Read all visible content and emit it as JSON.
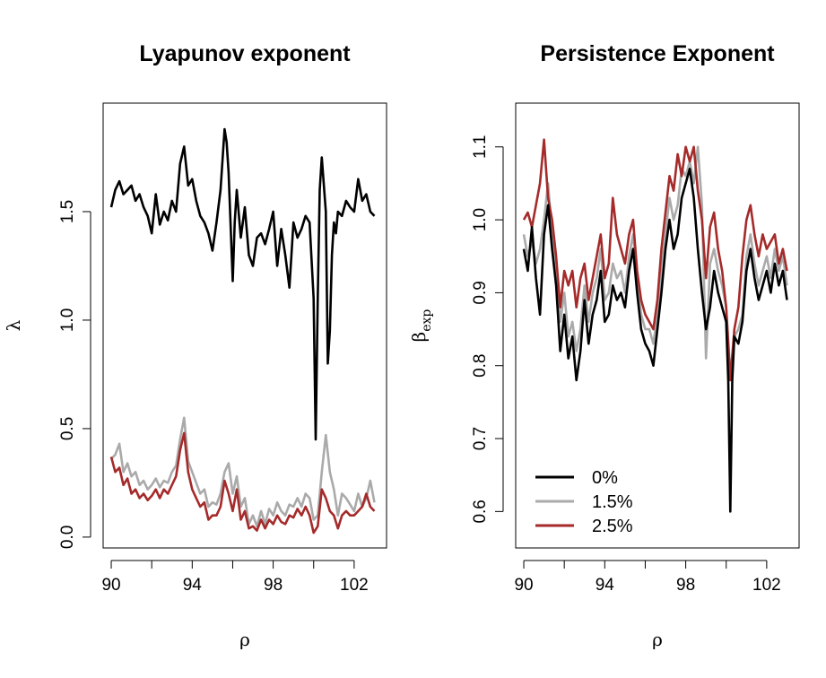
{
  "colors": {
    "s0": "#000000",
    "s15": "#aaaaaa",
    "s25": "#a52a2a"
  },
  "chart_data": [
    {
      "type": "line",
      "title": "Lyapunov exponent",
      "xlabel": "ρ",
      "ylabel": "λ",
      "xlim": [
        89.6,
        103.6
      ],
      "ylim": [
        -0.05,
        2.0
      ],
      "xticks": [
        90,
        92,
        94,
        96,
        98,
        100,
        102
      ],
      "xtick_labels": [
        "90",
        "",
        "94",
        "",
        "98",
        "",
        "102"
      ],
      "yticks": [
        0.0,
        0.5,
        1.0,
        1.5
      ],
      "ytick_labels": [
        "0.0",
        "0.5",
        "1.0",
        "1.5"
      ],
      "series": [
        {
          "name": "0%",
          "color": "#000000",
          "x": [
            90.0,
            90.2,
            90.4,
            90.6,
            90.8,
            91.0,
            91.2,
            91.4,
            91.6,
            91.8,
            92.0,
            92.2,
            92.4,
            92.6,
            92.8,
            93.0,
            93.2,
            93.4,
            93.6,
            93.8,
            94.0,
            94.2,
            94.4,
            94.6,
            94.8,
            95.0,
            95.2,
            95.4,
            95.6,
            95.7,
            95.8,
            96.0,
            96.1,
            96.2,
            96.4,
            96.6,
            96.8,
            97.0,
            97.2,
            97.4,
            97.6,
            97.8,
            98.0,
            98.2,
            98.4,
            98.6,
            98.8,
            99.0,
            99.2,
            99.4,
            99.6,
            99.8,
            100.0,
            100.1,
            100.2,
            100.3,
            100.4,
            100.6,
            100.7,
            100.8,
            100.9,
            101.0,
            101.1,
            101.2,
            101.4,
            101.6,
            101.8,
            102.0,
            102.2,
            102.4,
            102.6,
            102.8,
            103.0
          ],
          "y": [
            1.52,
            1.6,
            1.64,
            1.58,
            1.6,
            1.62,
            1.55,
            1.58,
            1.52,
            1.48,
            1.4,
            1.58,
            1.44,
            1.5,
            1.46,
            1.55,
            1.5,
            1.72,
            1.8,
            1.62,
            1.65,
            1.55,
            1.48,
            1.45,
            1.4,
            1.32,
            1.45,
            1.6,
            1.88,
            1.82,
            1.68,
            1.18,
            1.45,
            1.6,
            1.38,
            1.52,
            1.3,
            1.25,
            1.38,
            1.4,
            1.35,
            1.42,
            1.5,
            1.25,
            1.42,
            1.3,
            1.15,
            1.45,
            1.38,
            1.42,
            1.48,
            1.45,
            1.1,
            0.45,
            1.1,
            1.6,
            1.75,
            1.5,
            0.8,
            0.95,
            1.3,
            1.45,
            1.4,
            1.5,
            1.48,
            1.55,
            1.52,
            1.5,
            1.65,
            1.55,
            1.58,
            1.5,
            1.48
          ]
        },
        {
          "name": "1.5%",
          "color": "#aaaaaa",
          "x": [
            90.0,
            90.2,
            90.4,
            90.6,
            90.8,
            91.0,
            91.2,
            91.4,
            91.6,
            91.8,
            92.0,
            92.2,
            92.4,
            92.6,
            92.8,
            93.0,
            93.2,
            93.4,
            93.6,
            93.8,
            94.0,
            94.2,
            94.4,
            94.6,
            94.8,
            95.0,
            95.2,
            95.4,
            95.6,
            95.8,
            96.0,
            96.2,
            96.4,
            96.6,
            96.8,
            97.0,
            97.2,
            97.4,
            97.6,
            97.8,
            98.0,
            98.2,
            98.4,
            98.6,
            98.8,
            99.0,
            99.2,
            99.4,
            99.6,
            99.8,
            100.0,
            100.2,
            100.4,
            100.6,
            100.8,
            101.0,
            101.2,
            101.4,
            101.6,
            101.8,
            102.0,
            102.2,
            102.4,
            102.6,
            102.8,
            103.0
          ],
          "y": [
            0.36,
            0.38,
            0.43,
            0.3,
            0.34,
            0.28,
            0.3,
            0.24,
            0.26,
            0.22,
            0.24,
            0.27,
            0.23,
            0.26,
            0.25,
            0.3,
            0.33,
            0.45,
            0.55,
            0.35,
            0.3,
            0.25,
            0.2,
            0.22,
            0.14,
            0.16,
            0.15,
            0.2,
            0.3,
            0.34,
            0.2,
            0.28,
            0.14,
            0.18,
            0.06,
            0.1,
            0.05,
            0.12,
            0.06,
            0.13,
            0.1,
            0.16,
            0.12,
            0.1,
            0.15,
            0.14,
            0.18,
            0.14,
            0.2,
            0.18,
            0.08,
            0.1,
            0.3,
            0.47,
            0.3,
            0.22,
            0.1,
            0.2,
            0.18,
            0.15,
            0.12,
            0.2,
            0.14,
            0.18,
            0.26,
            0.16
          ]
        },
        {
          "name": "2.5%",
          "color": "#a52a2a",
          "x": [
            90.0,
            90.2,
            90.4,
            90.6,
            90.8,
            91.0,
            91.2,
            91.4,
            91.6,
            91.8,
            92.0,
            92.2,
            92.4,
            92.6,
            92.8,
            93.0,
            93.2,
            93.4,
            93.6,
            93.8,
            94.0,
            94.2,
            94.4,
            94.6,
            94.8,
            95.0,
            95.2,
            95.4,
            95.6,
            95.8,
            96.0,
            96.2,
            96.4,
            96.6,
            96.8,
            97.0,
            97.2,
            97.4,
            97.6,
            97.8,
            98.0,
            98.2,
            98.4,
            98.6,
            98.8,
            99.0,
            99.2,
            99.4,
            99.6,
            99.8,
            100.0,
            100.2,
            100.4,
            100.6,
            100.8,
            101.0,
            101.2,
            101.4,
            101.6,
            101.8,
            102.0,
            102.2,
            102.4,
            102.6,
            102.8,
            103.0
          ],
          "y": [
            0.37,
            0.3,
            0.32,
            0.24,
            0.27,
            0.2,
            0.22,
            0.18,
            0.2,
            0.17,
            0.19,
            0.22,
            0.18,
            0.22,
            0.2,
            0.24,
            0.28,
            0.4,
            0.48,
            0.3,
            0.22,
            0.18,
            0.14,
            0.16,
            0.08,
            0.1,
            0.1,
            0.14,
            0.26,
            0.2,
            0.12,
            0.22,
            0.08,
            0.12,
            0.04,
            0.05,
            0.03,
            0.08,
            0.04,
            0.08,
            0.06,
            0.1,
            0.07,
            0.06,
            0.1,
            0.09,
            0.13,
            0.1,
            0.14,
            0.1,
            0.02,
            0.05,
            0.22,
            0.18,
            0.12,
            0.1,
            0.04,
            0.1,
            0.12,
            0.1,
            0.1,
            0.12,
            0.14,
            0.2,
            0.14,
            0.12
          ]
        }
      ]
    },
    {
      "type": "line",
      "title": "Persistence Exponent",
      "xlabel": "ρ",
      "ylabel_main": "β",
      "ylabel_sub": "exp",
      "xlim": [
        89.6,
        103.6
      ],
      "ylim": [
        0.55,
        1.16
      ],
      "xticks": [
        90,
        92,
        94,
        96,
        98,
        100,
        102
      ],
      "xtick_labels": [
        "90",
        "",
        "94",
        "",
        "98",
        "",
        "102"
      ],
      "yticks": [
        0.6,
        0.7,
        0.8,
        0.9,
        1.0,
        1.1
      ],
      "ytick_labels": [
        "0.6",
        "0.7",
        "0.8",
        "0.9",
        "1.0",
        "1.1"
      ],
      "legend": {
        "placement": "bottom-left",
        "entries": [
          "0%",
          "1.5%",
          "2.5%"
        ]
      },
      "series": [
        {
          "name": "0%",
          "color": "#000000",
          "x": [
            90.0,
            90.2,
            90.4,
            90.6,
            90.8,
            91.0,
            91.2,
            91.4,
            91.6,
            91.8,
            92.0,
            92.2,
            92.4,
            92.6,
            92.8,
            93.0,
            93.2,
            93.4,
            93.6,
            93.8,
            94.0,
            94.2,
            94.4,
            94.6,
            94.8,
            95.0,
            95.2,
            95.4,
            95.6,
            95.8,
            96.0,
            96.2,
            96.4,
            96.6,
            96.8,
            97.0,
            97.2,
            97.4,
            97.6,
            97.8,
            98.0,
            98.2,
            98.4,
            98.6,
            98.8,
            99.0,
            99.2,
            99.4,
            99.6,
            99.8,
            100.0,
            100.1,
            100.2,
            100.3,
            100.4,
            100.6,
            100.8,
            101.0,
            101.2,
            101.4,
            101.6,
            101.8,
            102.0,
            102.2,
            102.4,
            102.6,
            102.8,
            103.0
          ],
          "y": [
            0.96,
            0.93,
            0.99,
            0.92,
            0.87,
            0.98,
            1.02,
            0.96,
            0.91,
            0.82,
            0.87,
            0.81,
            0.84,
            0.78,
            0.82,
            0.89,
            0.83,
            0.87,
            0.89,
            0.93,
            0.86,
            0.87,
            0.91,
            0.89,
            0.9,
            0.88,
            0.93,
            0.96,
            0.9,
            0.85,
            0.83,
            0.82,
            0.8,
            0.85,
            0.9,
            0.96,
            1.0,
            0.96,
            0.98,
            1.03,
            1.05,
            1.07,
            1.03,
            0.96,
            0.9,
            0.85,
            0.88,
            0.93,
            0.9,
            0.88,
            0.86,
            0.78,
            0.6,
            0.78,
            0.84,
            0.83,
            0.86,
            0.93,
            0.96,
            0.92,
            0.89,
            0.91,
            0.93,
            0.9,
            0.94,
            0.91,
            0.93,
            0.89
          ]
        },
        {
          "name": "1.5%",
          "color": "#aaaaaa",
          "x": [
            90.0,
            90.2,
            90.4,
            90.6,
            90.8,
            91.0,
            91.2,
            91.4,
            91.6,
            91.8,
            92.0,
            92.2,
            92.4,
            92.6,
            92.8,
            93.0,
            93.2,
            93.4,
            93.6,
            93.8,
            94.0,
            94.2,
            94.4,
            94.6,
            94.8,
            95.0,
            95.2,
            95.4,
            95.6,
            95.8,
            96.0,
            96.2,
            96.4,
            96.6,
            96.8,
            97.0,
            97.2,
            97.4,
            97.6,
            97.8,
            98.0,
            98.2,
            98.4,
            98.6,
            98.8,
            99.0,
            99.2,
            99.4,
            99.6,
            99.8,
            100.0,
            100.2,
            100.4,
            100.6,
            100.8,
            101.0,
            101.2,
            101.4,
            101.6,
            101.8,
            102.0,
            102.2,
            102.4,
            102.6,
            102.8,
            103.0
          ],
          "y": [
            0.98,
            0.95,
            0.97,
            0.94,
            0.96,
            1.0,
            1.05,
            0.98,
            0.93,
            0.86,
            0.9,
            0.84,
            0.86,
            0.82,
            0.85,
            0.91,
            0.86,
            0.9,
            0.92,
            0.96,
            0.89,
            0.9,
            0.94,
            0.92,
            0.93,
            0.9,
            0.95,
            0.98,
            0.92,
            0.87,
            0.85,
            0.85,
            0.83,
            0.87,
            0.93,
            0.98,
            1.03,
            1.0,
            1.02,
            1.07,
            1.06,
            1.08,
            1.05,
            1.1,
            1.02,
            0.81,
            0.94,
            0.96,
            0.93,
            0.91,
            0.88,
            0.79,
            0.84,
            0.85,
            0.87,
            0.95,
            0.98,
            0.94,
            0.91,
            0.93,
            0.95,
            0.92,
            0.96,
            0.93,
            0.95,
            0.91
          ]
        },
        {
          "name": "2.5%",
          "color": "#a52a2a",
          "x": [
            90.0,
            90.2,
            90.4,
            90.6,
            90.8,
            91.0,
            91.2,
            91.4,
            91.6,
            91.8,
            92.0,
            92.2,
            92.4,
            92.6,
            92.8,
            93.0,
            93.2,
            93.4,
            93.6,
            93.8,
            94.0,
            94.2,
            94.4,
            94.6,
            94.8,
            95.0,
            95.2,
            95.4,
            95.6,
            95.8,
            96.0,
            96.2,
            96.4,
            96.6,
            96.8,
            97.0,
            97.2,
            97.4,
            97.6,
            97.8,
            98.0,
            98.2,
            98.4,
            98.6,
            98.8,
            99.0,
            99.2,
            99.4,
            99.6,
            99.8,
            100.0,
            100.2,
            100.4,
            100.6,
            100.8,
            101.0,
            101.2,
            101.4,
            101.6,
            101.8,
            102.0,
            102.2,
            102.4,
            102.6,
            102.8,
            103.0
          ],
          "y": [
            1.0,
            1.01,
            0.99,
            1.02,
            1.05,
            1.11,
            1.03,
            1.0,
            0.95,
            0.88,
            0.93,
            0.91,
            0.93,
            0.88,
            0.92,
            0.94,
            0.89,
            0.92,
            0.95,
            0.98,
            0.92,
            0.94,
            1.03,
            0.98,
            0.96,
            0.94,
            0.98,
            1.0,
            0.93,
            0.89,
            0.87,
            0.86,
            0.85,
            0.89,
            0.96,
            1.01,
            1.06,
            1.04,
            1.09,
            1.06,
            1.1,
            1.08,
            1.1,
            1.04,
            1.0,
            0.92,
            0.99,
            1.01,
            0.96,
            0.93,
            0.88,
            0.78,
            0.85,
            0.88,
            0.95,
            1.0,
            1.02,
            0.98,
            0.95,
            0.98,
            0.96,
            0.97,
            0.98,
            0.94,
            0.96,
            0.93
          ]
        }
      ]
    }
  ]
}
